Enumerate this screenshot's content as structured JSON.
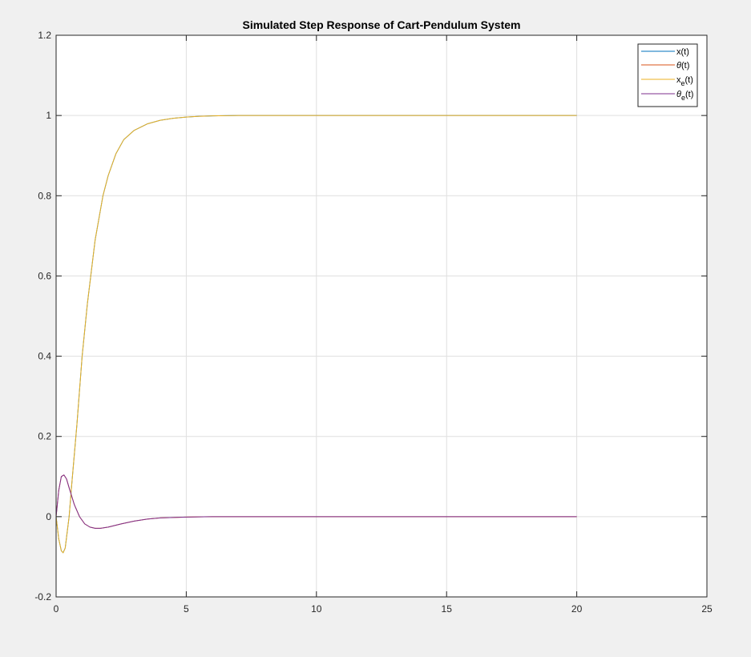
{
  "chart_data": {
    "type": "line",
    "title": "Simulated Step Response of Cart-Pendulum System",
    "xlabel": "",
    "ylabel": "",
    "xlim": [
      0,
      25
    ],
    "ylim": [
      -0.2,
      1.2
    ],
    "xticks": [
      "0",
      "5",
      "10",
      "15",
      "20",
      "25"
    ],
    "yticks": [
      "-0.2",
      "0",
      "0.2",
      "0.4",
      "0.6",
      "0.8",
      "1",
      "1.2"
    ],
    "grid": true,
    "legend_position": "top-right",
    "series": [
      {
        "name": "x(t)",
        "color": "#0072BD",
        "x": [
          0,
          0.1,
          0.2,
          0.27,
          0.35,
          0.5,
          0.6,
          0.8,
          1.0,
          1.2,
          1.5,
          1.8,
          2.0,
          2.3,
          2.6,
          3.0,
          3.5,
          4.0,
          4.5,
          5.0,
          5.5,
          6.0,
          7.0,
          8.0,
          10.0,
          12.0,
          15.0,
          20.0
        ],
        "y": [
          0,
          -0.055,
          -0.085,
          -0.09,
          -0.078,
          0.0,
          0.08,
          0.23,
          0.4,
          0.53,
          0.69,
          0.8,
          0.85,
          0.905,
          0.94,
          0.963,
          0.979,
          0.988,
          0.993,
          0.996,
          0.998,
          0.999,
          1.0,
          1.0,
          1.0,
          1.0,
          1.0,
          1.0
        ]
      },
      {
        "name": "θ(t)",
        "color": "#D95319",
        "x": [
          0,
          0.1,
          0.2,
          0.3,
          0.4,
          0.5,
          0.7,
          0.9,
          1.1,
          1.3,
          1.5,
          1.7,
          2.0,
          2.5,
          3.0,
          3.5,
          4.0,
          5.0,
          6.0,
          8.0,
          10.0,
          15.0,
          20.0
        ],
        "y": [
          0,
          0.065,
          0.1,
          0.104,
          0.094,
          0.072,
          0.03,
          0.0,
          -0.018,
          -0.026,
          -0.029,
          -0.029,
          -0.026,
          -0.018,
          -0.011,
          -0.006,
          -0.003,
          -0.001,
          0.0,
          0.0,
          0.0,
          0.0,
          0.0
        ]
      },
      {
        "name": "x_e(t)",
        "color": "#EDB120",
        "x": [
          0,
          0.1,
          0.2,
          0.27,
          0.35,
          0.5,
          0.6,
          0.8,
          1.0,
          1.2,
          1.5,
          1.8,
          2.0,
          2.3,
          2.6,
          3.0,
          3.5,
          4.0,
          4.5,
          5.0,
          5.5,
          6.0,
          7.0,
          8.0,
          10.0,
          12.0,
          15.0,
          20.0
        ],
        "y": [
          0,
          -0.055,
          -0.085,
          -0.09,
          -0.078,
          0.0,
          0.08,
          0.23,
          0.4,
          0.53,
          0.69,
          0.8,
          0.85,
          0.905,
          0.94,
          0.963,
          0.979,
          0.988,
          0.993,
          0.996,
          0.998,
          0.999,
          1.0,
          1.0,
          1.0,
          1.0,
          1.0,
          1.0
        ]
      },
      {
        "name": "θ_e(t)",
        "color": "#7E2F8E",
        "x": [
          0,
          0.1,
          0.2,
          0.3,
          0.4,
          0.5,
          0.7,
          0.9,
          1.1,
          1.3,
          1.5,
          1.7,
          2.0,
          2.5,
          3.0,
          3.5,
          4.0,
          5.0,
          6.0,
          8.0,
          10.0,
          15.0,
          20.0
        ],
        "y": [
          0,
          0.065,
          0.1,
          0.104,
          0.094,
          0.072,
          0.03,
          0.0,
          -0.018,
          -0.026,
          -0.029,
          -0.029,
          -0.026,
          -0.018,
          -0.011,
          -0.006,
          -0.003,
          -0.001,
          0.0,
          0.0,
          0.0,
          0.0,
          0.0
        ]
      }
    ]
  }
}
